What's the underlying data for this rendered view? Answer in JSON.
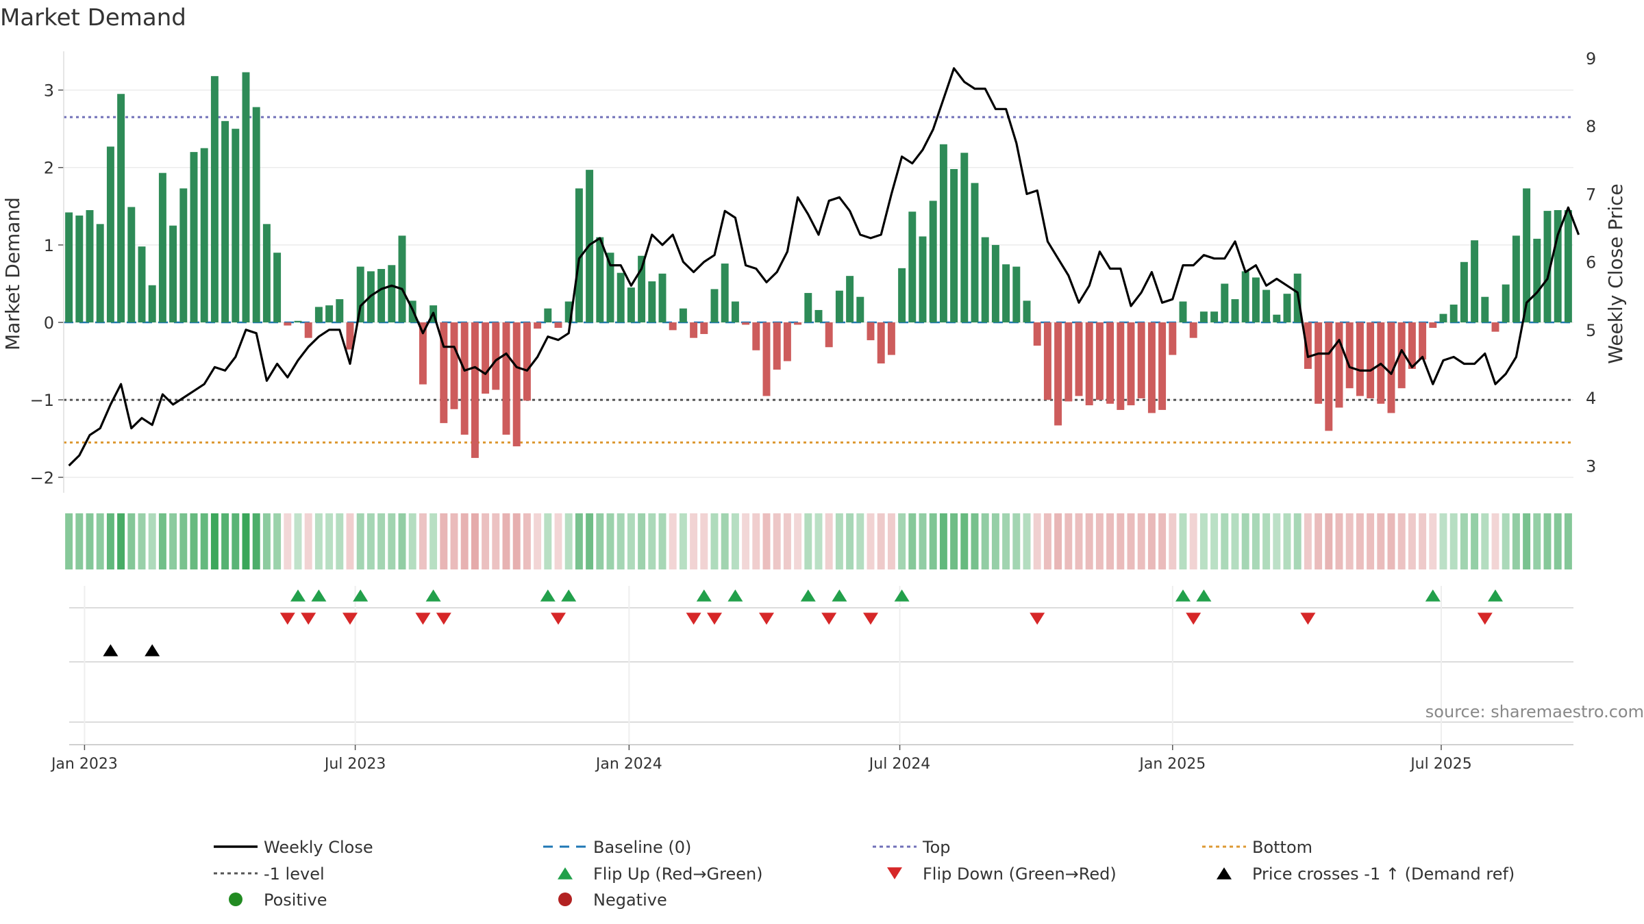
{
  "title": "Market Demand",
  "source_note": "source: sharemaestro.com",
  "colors": {
    "positive_bar": "#2e8b57",
    "negative_bar": "#cd5c5c",
    "price_line": "#000000",
    "baseline": "#1f77b4",
    "top_level": "#7070b8",
    "minus1_level": "#555555",
    "bottom_level": "#dd9933",
    "flip_up": "#22a04b",
    "flip_down": "#d62728",
    "cross_marker": "#000000",
    "positive_dot": "#228b22",
    "negative_dot": "#b22222"
  },
  "chart_data": {
    "type": "bar",
    "title": "Market Demand",
    "ylabel": "Market Demand",
    "y2label": "Weekly Close Price",
    "ylim": [
      -2.2,
      3.5
    ],
    "y2lim": [
      2.6,
      9.1
    ],
    "yticks": [
      -2,
      -1,
      0,
      1,
      2,
      3
    ],
    "ytick_labels": [
      "−2",
      "−1",
      "0",
      "1",
      "2",
      "3"
    ],
    "y2ticks": [
      3,
      4,
      5,
      6,
      7,
      8,
      9
    ],
    "ytick2_labels": [
      "3",
      "4",
      "5",
      "6",
      "7",
      "8",
      "9"
    ],
    "xticks": [
      {
        "label": "Jan 2023",
        "week": 1.5
      },
      {
        "label": "Jul 2023",
        "week": 27.5
      },
      {
        "label": "Jan 2024",
        "week": 53.8
      },
      {
        "label": "Jul 2024",
        "week": 79.8
      },
      {
        "label": "Jan 2025",
        "week": 106.0
      },
      {
        "label": "Jul 2025",
        "week": 131.8
      }
    ],
    "start_week": 0,
    "demand": [
      1.42,
      1.38,
      1.45,
      1.27,
      2.27,
      2.95,
      1.49,
      0.98,
      0.48,
      1.93,
      1.25,
      1.73,
      2.2,
      2.25,
      3.18,
      2.6,
      2.5,
      3.23,
      2.78,
      1.27,
      0.9,
      -0.04,
      0.02,
      -0.2,
      0.2,
      0.22,
      0.3,
      -0.35,
      0.72,
      0.66,
      0.69,
      0.74,
      1.12,
      0.28,
      -0.8,
      0.22,
      -1.3,
      -1.12,
      -1.45,
      -1.75,
      -0.92,
      -0.87,
      -1.45,
      -1.6,
      -1.01,
      -0.08,
      0.18,
      -0.07,
      0.27,
      1.73,
      1.97,
      1.1,
      0.9,
      0.64,
      0.45,
      0.86,
      0.53,
      0.63,
      -0.1,
      0.18,
      -0.2,
      -0.15,
      0.43,
      0.76,
      0.27,
      -0.03,
      -0.36,
      -0.95,
      -0.61,
      -0.5,
      -0.03,
      0.38,
      0.16,
      -0.32,
      0.41,
      0.6,
      0.33,
      -0.23,
      -0.53,
      -0.42,
      0.7,
      1.43,
      1.11,
      1.57,
      2.3,
      1.98,
      2.19,
      1.8,
      1.1,
      1.0,
      0.75,
      0.72,
      0.28,
      -0.3,
      -1.0,
      -1.33,
      -1.02,
      -0.95,
      -1.07,
      -1.0,
      -1.05,
      -1.13,
      -1.07,
      -0.98,
      -1.17,
      -1.13,
      -0.42,
      0.27,
      -0.2,
      0.14,
      0.14,
      0.5,
      0.3,
      0.66,
      0.58,
      0.42,
      0.1,
      0.37,
      0.63,
      -0.6,
      -1.05,
      -1.4,
      -1.1,
      -0.85,
      -0.95,
      -0.98,
      -1.05,
      -1.17,
      -0.85,
      -0.6,
      -0.48,
      -0.07,
      0.11,
      0.23,
      0.78,
      1.06,
      0.33,
      -0.12,
      0.49,
      1.12,
      1.73,
      1.08,
      1.44,
      1.45,
      1.45
    ],
    "price": [
      3.0,
      3.15,
      3.45,
      3.55,
      3.9,
      4.2,
      3.55,
      3.7,
      3.6,
      4.05,
      3.9,
      4.0,
      4.1,
      4.2,
      4.45,
      4.4,
      4.6,
      5.0,
      4.95,
      4.25,
      4.5,
      4.3,
      4.55,
      4.75,
      4.9,
      5.0,
      5.0,
      4.5,
      5.35,
      5.5,
      5.6,
      5.65,
      5.6,
      5.3,
      4.95,
      5.25,
      4.75,
      4.75,
      4.4,
      4.45,
      4.35,
      4.55,
      4.65,
      4.45,
      4.4,
      4.6,
      4.9,
      4.85,
      4.95,
      6.05,
      6.25,
      6.35,
      5.95,
      5.95,
      5.65,
      5.9,
      6.4,
      6.25,
      6.4,
      6.0,
      5.85,
      6.0,
      6.1,
      6.75,
      6.65,
      5.95,
      5.9,
      5.7,
      5.85,
      6.15,
      6.95,
      6.7,
      6.4,
      6.9,
      6.95,
      6.75,
      6.4,
      6.35,
      6.4,
      7.0,
      7.55,
      7.45,
      7.65,
      7.95,
      8.4,
      8.85,
      8.65,
      8.55,
      8.55,
      8.25,
      8.25,
      7.75,
      7.0,
      7.05,
      6.3,
      6.05,
      5.8,
      5.4,
      5.65,
      6.15,
      5.9,
      5.9,
      5.35,
      5.55,
      5.85,
      5.4,
      5.45,
      5.95,
      5.95,
      6.1,
      6.05,
      6.05,
      6.3,
      5.85,
      5.95,
      5.65,
      5.75,
      5.65,
      5.55,
      4.6,
      4.65,
      4.65,
      4.85,
      4.45,
      4.4,
      4.4,
      4.5,
      4.35,
      4.7,
      4.45,
      4.6,
      4.2,
      4.55,
      4.6,
      4.5,
      4.5,
      4.65,
      4.2,
      4.35,
      4.6,
      5.4,
      5.55,
      5.75,
      6.4,
      6.8,
      6.4
    ],
    "levels": {
      "top": 2.65,
      "minus_one": -1.0,
      "bottom": -1.55,
      "baseline": 0
    },
    "flip_up_weeks": [
      22,
      24,
      28,
      35,
      46,
      48,
      61,
      64,
      71,
      74,
      80,
      107,
      109,
      131,
      137
    ],
    "flip_down_weeks": [
      21,
      23,
      27,
      34,
      36,
      47,
      60,
      62,
      67,
      73,
      77,
      93,
      108,
      119,
      136
    ],
    "price_cross_weeks": [
      4,
      8
    ],
    "legend": [
      {
        "label": "Weekly Close",
        "kind": "line",
        "color": "#000000"
      },
      {
        "label": "Baseline (0)",
        "kind": "dash",
        "color": "#1f77b4"
      },
      {
        "label": "Top",
        "kind": "dot",
        "color": "#7070b8"
      },
      {
        "label": "Bottom",
        "kind": "dot",
        "color": "#dd9933"
      },
      {
        "label": "-1 level",
        "kind": "dot",
        "color": "#555555"
      },
      {
        "label": "Flip Up (Red→Green)",
        "kind": "tri-up",
        "color": "#22a04b"
      },
      {
        "label": "Flip Down (Green→Red)",
        "kind": "tri-down",
        "color": "#d62728"
      },
      {
        "label": "Price crosses -1 ↑ (Demand ref)",
        "kind": "tri-up",
        "color": "#000000"
      },
      {
        "label": "Positive",
        "kind": "dot-circle",
        "color": "#228b22"
      },
      {
        "label": "Negative",
        "kind": "dot-circle",
        "color": "#b22222"
      }
    ]
  }
}
